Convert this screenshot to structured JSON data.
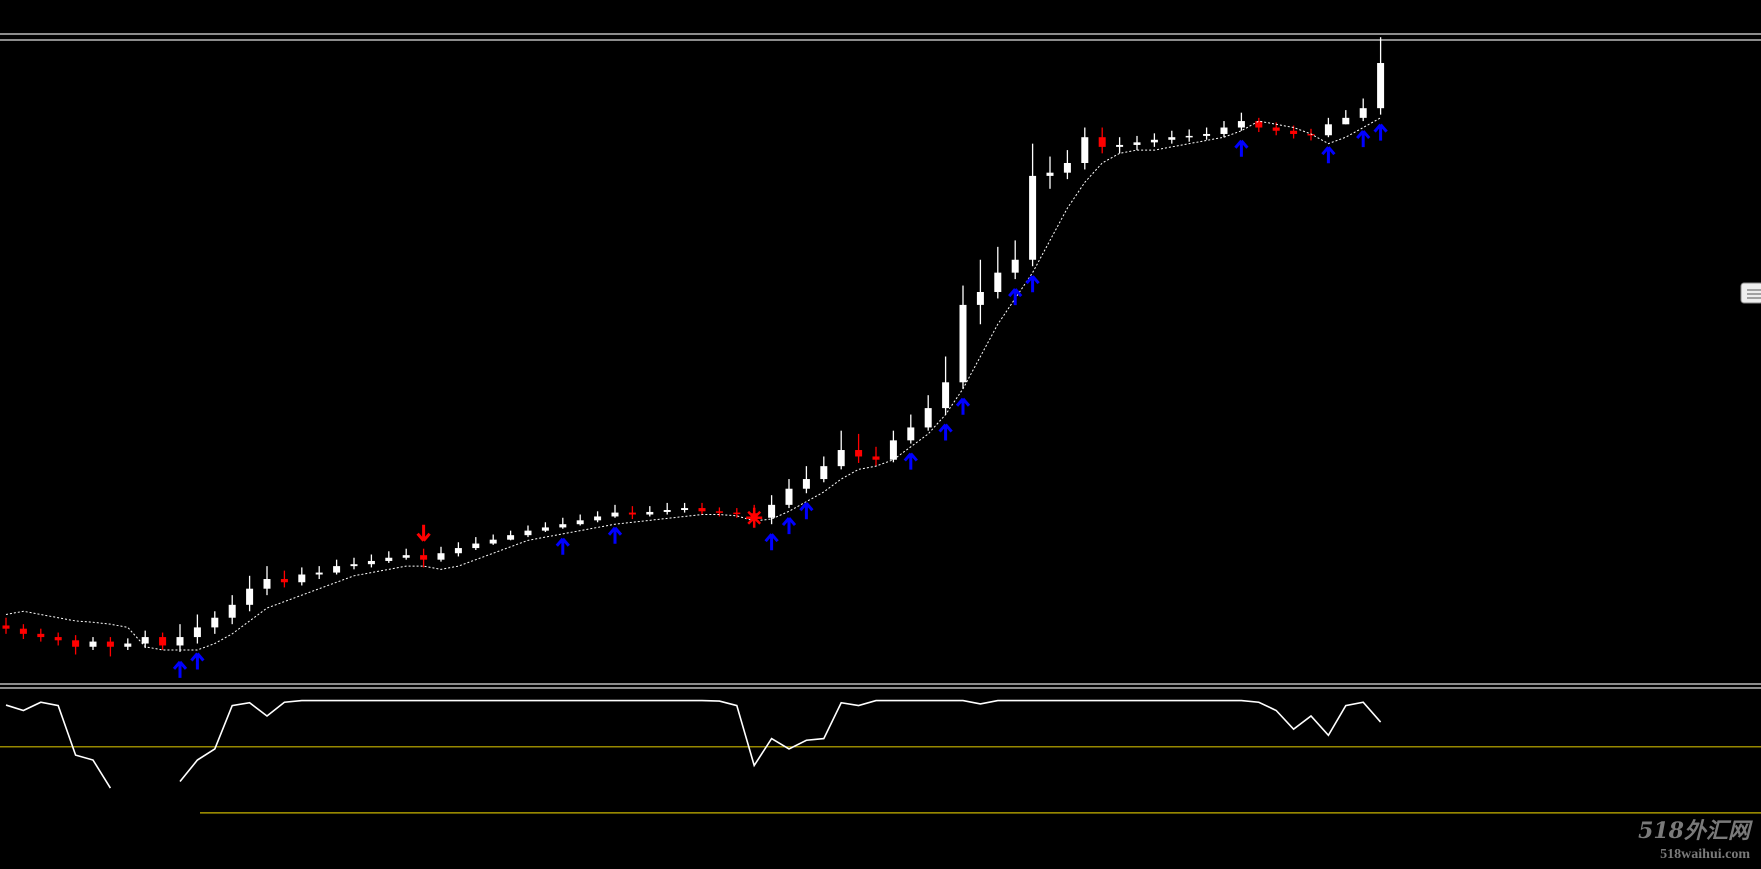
{
  "chart_data": {
    "type": "candlestick",
    "open": [
      8.3,
      7.8,
      7.0,
      6.5,
      6.0,
      5.0,
      5.8,
      5.0,
      5.5,
      6.5,
      5.2,
      6.5,
      8.0,
      9.5,
      11.5,
      14,
      15.5,
      15.0,
      16.2,
      16.5,
      17.5,
      17.8,
      18.3,
      18.8,
      19.2,
      18.5,
      19.5,
      20.3,
      21,
      21.6,
      22.3,
      23,
      23.5,
      24,
      24.6,
      25.2,
      25.8,
      25.5,
      25.9,
      26.2,
      26.5,
      26,
      25.8,
      25.7,
      25,
      27,
      29.5,
      31,
      33,
      35.5,
      34.5,
      34,
      37,
      39,
      42,
      46,
      58,
      60,
      63,
      65,
      78,
      78.5,
      80,
      84,
      82.5,
      82.8,
      83.2,
      83.6,
      84,
      84.2,
      84.5,
      85.5,
      86.5,
      85.5,
      85,
      84.5,
      84.3,
      86,
      87,
      88.5
    ],
    "high": [
      9.5,
      8.5,
      7.8,
      7.2,
      6.8,
      6.5,
      6.5,
      6.3,
      7.5,
      7.2,
      8.5,
      10,
      10.5,
      13,
      16,
      17.5,
      16.8,
      17.3,
      17.5,
      18.5,
      18.8,
      19.3,
      19.8,
      20.2,
      20.2,
      20.5,
      21.2,
      22,
      22.4,
      23,
      23.8,
      24.3,
      25,
      25.5,
      26,
      27,
      26.8,
      26.8,
      27.3,
      27.3,
      27.3,
      26.6,
      26.5,
      27,
      28.5,
      31,
      33,
      34.5,
      38.5,
      38,
      36,
      38.5,
      41,
      44,
      50,
      61,
      65,
      67,
      68,
      83,
      81,
      82,
      85.5,
      85.5,
      84,
      84.2,
      84.6,
      85,
      85.2,
      85.5,
      86.5,
      87.8,
      87,
      86.3,
      85.8,
      85.3,
      87,
      88.2,
      90,
      99.5
    ],
    "low": [
      7,
      6.2,
      5.8,
      5.2,
      3.8,
      4.5,
      3.5,
      4.5,
      4.8,
      4.5,
      4.2,
      5.5,
      7,
      8.5,
      10.5,
      13,
      14.2,
      14.5,
      15.5,
      16.2,
      17,
      17.3,
      18,
      18.5,
      17.3,
      18.2,
      19,
      20,
      20.8,
      21.5,
      22,
      22.8,
      23.3,
      23.8,
      24.3,
      25,
      24.8,
      25.2,
      25.5,
      25.8,
      25.5,
      25.2,
      25,
      23.5,
      24,
      26.5,
      28.8,
      30.5,
      32.5,
      33.5,
      33,
      33.6,
      36.5,
      38.5,
      41,
      45,
      55,
      59,
      62,
      64,
      76,
      77.5,
      79,
      81.5,
      81.5,
      82,
      82.5,
      83,
      83.3,
      83.6,
      84,
      85,
      84.8,
      84.3,
      83.8,
      83.5,
      84,
      86,
      86.5,
      87.5
    ],
    "close": [
      7.8,
      7.0,
      6.5,
      6.0,
      5.0,
      5.8,
      5.0,
      5.5,
      6.5,
      5.2,
      6.5,
      8.0,
      9.5,
      11.5,
      14,
      15.5,
      15.0,
      16.2,
      16.5,
      17.5,
      17.8,
      18.3,
      18.8,
      19.2,
      18.5,
      19.5,
      20.3,
      21,
      21.6,
      22.3,
      23,
      23.5,
      24,
      24.6,
      25.2,
      25.8,
      25.5,
      25.9,
      26.2,
      26.5,
      26,
      25.8,
      25.7,
      25,
      27,
      29.5,
      31,
      33,
      35.5,
      34.5,
      34,
      37,
      39,
      42,
      46,
      58,
      60,
      63,
      65,
      78,
      78.5,
      80,
      84,
      82.5,
      82.8,
      83.2,
      83.6,
      84,
      84.2,
      84.5,
      85.5,
      86.5,
      85.5,
      85,
      84.5,
      84.3,
      86,
      87,
      88.5,
      95.5
    ],
    "up_color": "#ffffff",
    "down_color": "#ff0000",
    "ylim": [
      0,
      100
    ],
    "trail": {
      "color": "#ffffff",
      "values": [
        10,
        10.5,
        10,
        9.5,
        9,
        8.8,
        8.5,
        8,
        5,
        4.5,
        4.5,
        4.5,
        5.5,
        7,
        9,
        11,
        12,
        13,
        14,
        15,
        16,
        16.5,
        17,
        17.5,
        17.5,
        17,
        17.5,
        18.5,
        19.5,
        20.5,
        21.5,
        22,
        22.5,
        23,
        23.5,
        24,
        24.3,
        24.6,
        24.9,
        25.2,
        25.5,
        25.5,
        25.3,
        24.5,
        24.8,
        26,
        27.5,
        29,
        31,
        32.5,
        33,
        34,
        36,
        38,
        41,
        45,
        50,
        55,
        59,
        63,
        68,
        73,
        77,
        80,
        81.5,
        82,
        82,
        82.5,
        83,
        83.5,
        84,
        85,
        86.5,
        86,
        85.5,
        84.5,
        83,
        84,
        85.5,
        87
      ]
    },
    "signals": {
      "up": [
        10,
        11,
        32,
        35,
        44,
        45,
        46,
        52,
        54,
        55,
        58,
        59,
        71,
        76,
        78,
        79
      ],
      "down": [
        24
      ],
      "star": [
        43
      ],
      "up_color": "#0000ff",
      "down_color": "#ff0000"
    },
    "oscillator": {
      "color": "#ffffff",
      "ylim": [
        -4,
        102
      ],
      "levels": [
        70,
        30
      ],
      "level_color": "#c8b400",
      "values": [
        95.3,
        92,
        97,
        95,
        65,
        62,
        45,
        null,
        null,
        null,
        49,
        62,
        68.7,
        95,
        96.7,
        88.7,
        97,
        98,
        98,
        98,
        98,
        98,
        98,
        98,
        98,
        98,
        98,
        98,
        98,
        98,
        98,
        98,
        98,
        98,
        98,
        98,
        98,
        98,
        98,
        98,
        98,
        97.7,
        95,
        58.7,
        75,
        68.7,
        74,
        75,
        96.7,
        95,
        98,
        98,
        98,
        98,
        98,
        98,
        96,
        98,
        98,
        98,
        98,
        98,
        98,
        98,
        98,
        98,
        98,
        98,
        98,
        98,
        98,
        98,
        97,
        92,
        80.7,
        88.7,
        77,
        95,
        97,
        85
      ]
    }
  },
  "watermark": {
    "title": "518外汇网",
    "url": "518waihui.com"
  }
}
